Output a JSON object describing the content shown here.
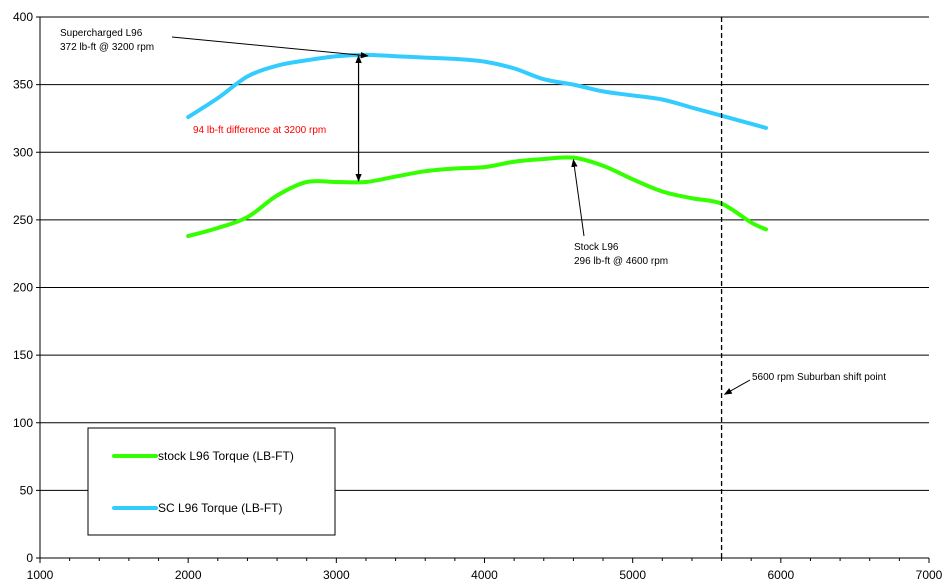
{
  "chart_data": {
    "type": "line",
    "xlim": [
      1000,
      7000
    ],
    "ylim": [
      0,
      400
    ],
    "x_ticks": [
      "1000",
      "2000",
      "3000",
      "4000",
      "5000",
      "6000",
      "7000"
    ],
    "y_ticks": [
      "0",
      "50",
      "100",
      "150",
      "200",
      "250",
      "300",
      "350",
      "400"
    ],
    "grid": "horizontal",
    "legend": "bottom-left",
    "series": [
      {
        "name": "stock L96 Torque (LB-FT)",
        "color": "#33ff00",
        "points": [
          [
            2000,
            238
          ],
          [
            2200,
            244
          ],
          [
            2400,
            252
          ],
          [
            2600,
            268
          ],
          [
            2800,
            278
          ],
          [
            3000,
            278
          ],
          [
            3200,
            278
          ],
          [
            3400,
            282
          ],
          [
            3600,
            286
          ],
          [
            3800,
            288
          ],
          [
            4000,
            289
          ],
          [
            4200,
            293
          ],
          [
            4400,
            295
          ],
          [
            4600,
            296
          ],
          [
            4800,
            290
          ],
          [
            5000,
            280
          ],
          [
            5200,
            271
          ],
          [
            5400,
            266
          ],
          [
            5600,
            262
          ],
          [
            5800,
            248
          ],
          [
            5900,
            243
          ]
        ]
      },
      {
        "name": "SC L96 Torque (LB-FT)",
        "color": "#33ccff",
        "points": [
          [
            2000,
            326
          ],
          [
            2200,
            340
          ],
          [
            2400,
            356
          ],
          [
            2600,
            364
          ],
          [
            2800,
            368
          ],
          [
            3000,
            371
          ],
          [
            3200,
            372
          ],
          [
            3400,
            371
          ],
          [
            3600,
            370
          ],
          [
            3800,
            369
          ],
          [
            4000,
            367
          ],
          [
            4200,
            362
          ],
          [
            4400,
            354
          ],
          [
            4600,
            350
          ],
          [
            4800,
            345
          ],
          [
            5000,
            342
          ],
          [
            5200,
            339
          ],
          [
            5400,
            333
          ],
          [
            5600,
            327
          ],
          [
            5800,
            321
          ],
          [
            5900,
            318
          ]
        ]
      }
    ],
    "annotations": [
      {
        "id": "sc-peak",
        "lines": [
          "Supercharged L96",
          "372 lb-ft @ 3200 rpm"
        ],
        "target": [
          3200,
          372
        ]
      },
      {
        "id": "diff",
        "lines": [
          "94 lb-ft difference at 3200 rpm"
        ],
        "color": "#ff0000",
        "from": [
          3150,
          372
        ],
        "to": [
          3150,
          278
        ]
      },
      {
        "id": "stock-peak",
        "lines": [
          "Stock L96",
          "296 lb-ft @ 4600 rpm"
        ],
        "target": [
          4600,
          296
        ]
      },
      {
        "id": "shift",
        "lines": [
          "5600 rpm Suburban shift point"
        ],
        "x": 5600
      }
    ]
  }
}
